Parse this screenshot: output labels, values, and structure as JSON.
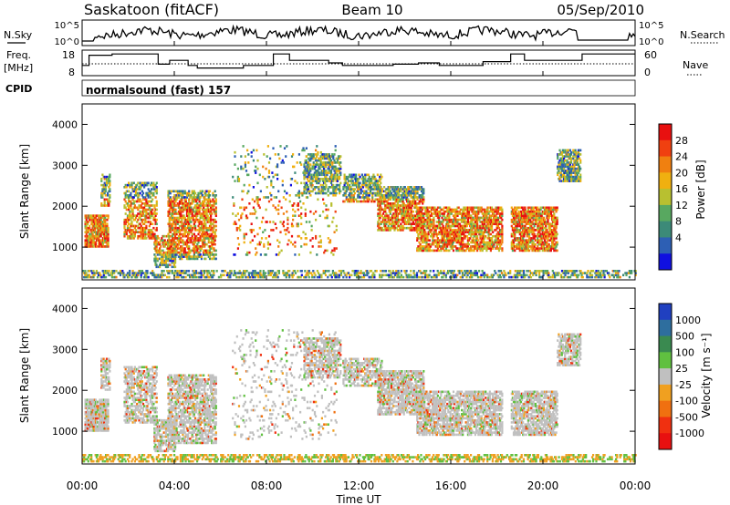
{
  "header": {
    "station": "Saskatoon (fitACF)",
    "beam": "Beam 10",
    "date": "05/Sep/2010"
  },
  "side_labels": {
    "nsky": "N.Sky",
    "freq_line1": "Freq.",
    "freq_line2": "[MHz]",
    "cpid": "CPID",
    "nsearch": "N.Search",
    "nave": "Nave"
  },
  "mode_label": "normalsound (fast) 157",
  "chart_data": [
    {
      "type": "line",
      "panel": "noise",
      "yaxis_left": {
        "ticks": [
          "10^5",
          "10^0"
        ]
      },
      "yaxis_right": {
        "ticks": [
          "10^5",
          "10^0"
        ]
      },
      "series_note": "noise level, log scale"
    },
    {
      "type": "line",
      "panel": "frequency_nave",
      "yaxis_left": {
        "ticks": [
          18,
          8
        ],
        "range": [
          8,
          18
        ]
      },
      "yaxis_right": {
        "ticks": [
          60,
          0
        ],
        "range": [
          0,
          60
        ]
      },
      "freq_steps": [
        {
          "t": 0.0,
          "f": 12
        },
        {
          "t": 0.3,
          "f": 16
        },
        {
          "t": 1.3,
          "f": 16.5
        },
        {
          "t": 3.3,
          "f": 12.5
        },
        {
          "t": 3.8,
          "f": 14
        },
        {
          "t": 4.6,
          "f": 12
        },
        {
          "t": 5.0,
          "f": 11
        },
        {
          "t": 7.0,
          "f": 12
        },
        {
          "t": 8.3,
          "f": 16.5
        },
        {
          "t": 9.0,
          "f": 14
        },
        {
          "t": 10.7,
          "f": 13
        },
        {
          "t": 11.3,
          "f": 12
        },
        {
          "t": 13.5,
          "f": 12.5
        },
        {
          "t": 14.6,
          "f": 13
        },
        {
          "t": 15.5,
          "f": 12
        },
        {
          "t": 17.4,
          "f": 13.5
        },
        {
          "t": 18.6,
          "f": 16.5
        },
        {
          "t": 19.2,
          "f": 14
        },
        {
          "t": 21.7,
          "f": 16.5
        },
        {
          "t": 24.0,
          "f": 16.5
        }
      ]
    },
    {
      "type": "heatmap",
      "panel": "power",
      "xlabel": "",
      "ylabel": "Slant Range [km]",
      "ylim": [
        200,
        4500
      ],
      "xlim": [
        0,
        24
      ],
      "yticks": [
        1000,
        2000,
        3000,
        4000
      ],
      "colorbar": {
        "label": "Power [dB]",
        "ticks": [
          4,
          8,
          12,
          16,
          20,
          24,
          28
        ]
      }
    },
    {
      "type": "heatmap",
      "panel": "velocity",
      "xlabel": "Time UT",
      "ylabel": "Slant Range [km]",
      "ylim": [
        200,
        4500
      ],
      "xlim": [
        0,
        24
      ],
      "yticks": [
        1000,
        2000,
        3000,
        4000
      ],
      "xticks": [
        "00:00",
        "04:00",
        "08:00",
        "12:00",
        "16:00",
        "20:00",
        "00:00"
      ],
      "colorbar": {
        "label": "Velocity [m s⁻¹]",
        "ticks": [
          1000,
          500,
          100,
          25,
          -25,
          -100,
          -500,
          -1000
        ]
      }
    }
  ],
  "colors": {
    "power": [
      "#1010e0",
      "#2d5fb4",
      "#3c8a78",
      "#58a860",
      "#b8c030",
      "#f0b010",
      "#f08010",
      "#f04010",
      "#e81010"
    ],
    "velocity": [
      "#2040c0",
      "#2e6e9e",
      "#3a8a50",
      "#60c040",
      "#c0c0c0",
      "#f0a020",
      "#f07010",
      "#f03010",
      "#e81010"
    ]
  }
}
